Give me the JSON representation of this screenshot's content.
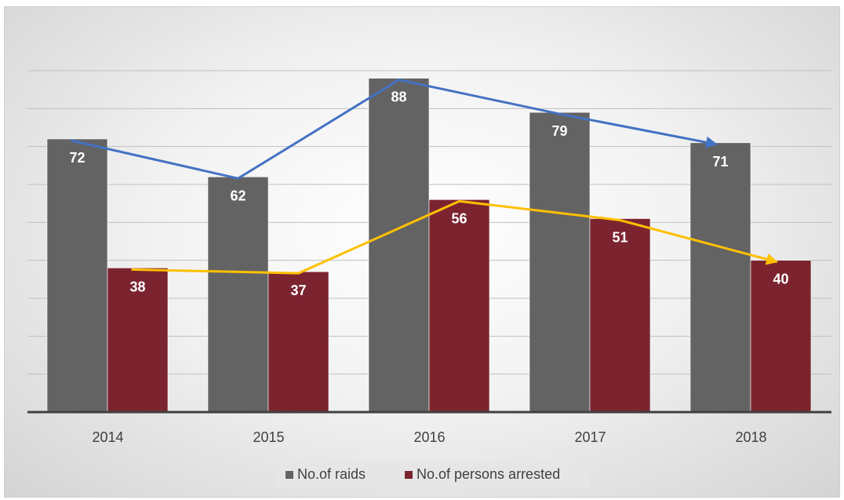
{
  "chart_data": {
    "type": "bar",
    "categories": [
      "2014",
      "2015",
      "2016",
      "2017",
      "2018"
    ],
    "series": [
      {
        "name": "No.of raids",
        "values": [
          72,
          62,
          88,
          79,
          71
        ],
        "color": "#636363"
      },
      {
        "name": "No.of persons arrested",
        "values": [
          38,
          37,
          56,
          51,
          40
        ],
        "color": "#7b2430"
      }
    ],
    "trend_lines": [
      {
        "series": "No.of raids",
        "color": "#4472c4"
      },
      {
        "series": "No.of persons arrested",
        "color": "#ffc000"
      }
    ],
    "ylim": [
      0,
      90
    ],
    "grid": true,
    "data_labels": true,
    "legend": "bottom-center",
    "label_color": "#ffffff",
    "axis_color": "#404040"
  }
}
